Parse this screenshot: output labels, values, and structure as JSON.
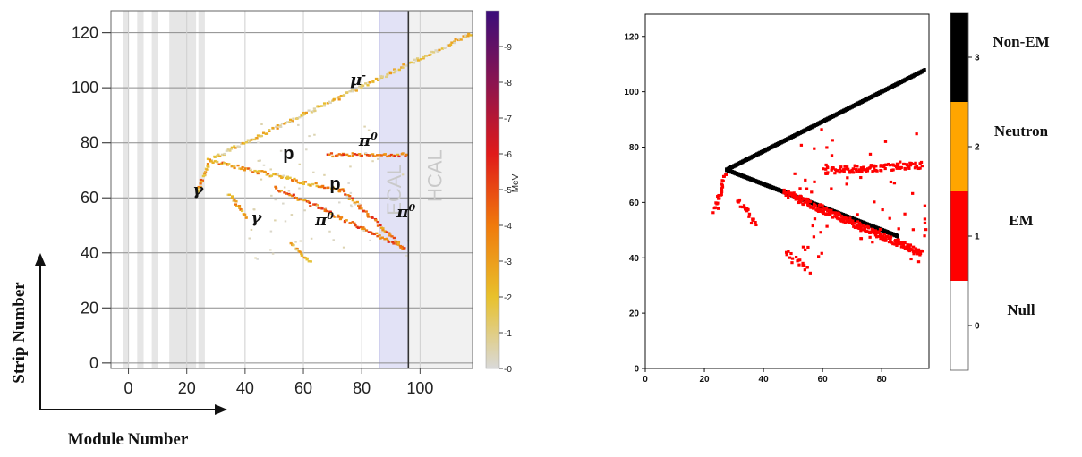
{
  "chart_data": [
    {
      "type": "heatmap",
      "title": "",
      "xlim": [
        -6,
        118
      ],
      "ylim": [
        -2,
        128
      ],
      "x_ticks": [
        "0",
        "20",
        "40",
        "60",
        "80",
        "100"
      ],
      "y_ticks": [
        "0",
        "20",
        "40",
        "60",
        "80",
        "100",
        "120"
      ],
      "xlabel": "Module Number",
      "ylabel": "Strip Number",
      "colorbar": {
        "label": "MeV",
        "range": [
          0,
          10
        ],
        "ticks": [
          "0",
          "1",
          "2",
          "3",
          "4",
          "5",
          "6",
          "7",
          "8",
          "9"
        ],
        "colors": [
          "#d9d9d9",
          "#e8c12c",
          "#f07a0c",
          "#e01a1a",
          "#8a1450",
          "#3a0e7a"
        ]
      },
      "regions": [
        {
          "name": "ECAL",
          "x": [
            86,
            96
          ]
        },
        {
          "name": "HCAL",
          "x": [
            96,
            118
          ]
        }
      ],
      "shaded_modules": [
        -2,
        3,
        8,
        14,
        21,
        24
      ],
      "annotations": [
        {
          "text": "μ",
          "sup": "-",
          "x": 76,
          "y": 101
        },
        {
          "text": "π",
          "sup": "0",
          "x": 79,
          "y": 79
        },
        {
          "text": "p",
          "sup": "",
          "x": 53,
          "y": 74
        },
        {
          "text": "p",
          "sup": "",
          "x": 69,
          "y": 63
        },
        {
          "text": "γ",
          "sup": "",
          "x": 22,
          "y": 61
        },
        {
          "text": "γ",
          "sup": "",
          "x": 42,
          "y": 51
        },
        {
          "text": "π",
          "sup": "0",
          "x": 64,
          "y": 50
        },
        {
          "text": "π",
          "sup": "0",
          "x": 92,
          "y": 53
        }
      ],
      "tracks": [
        {
          "label": "μ-",
          "from": [
            27,
            74
          ],
          "to": [
            117,
            120
          ],
          "energy": 1.5
        },
        {
          "label": "p",
          "from": [
            27,
            74
          ],
          "to": [
            72,
            63
          ],
          "energy": 3
        },
        {
          "label": "π0",
          "from": [
            50,
            64
          ],
          "to": [
            93,
            43
          ],
          "energy": 4
        },
        {
          "label": "π0",
          "from": [
            68,
            76
          ],
          "to": [
            95,
            76
          ],
          "energy": 4
        },
        {
          "label": "γ",
          "from": [
            27,
            73
          ],
          "to": [
            23,
            62
          ],
          "energy": 3
        },
        {
          "label": "γ",
          "from": [
            34,
            62
          ],
          "to": [
            40,
            53
          ],
          "energy": 2.5
        },
        {
          "label": "",
          "from": [
            55,
            44
          ],
          "to": [
            62,
            37
          ],
          "energy": 2
        },
        {
          "label": "",
          "from": [
            72,
            64
          ],
          "to": [
            94,
            42
          ],
          "energy": 4
        }
      ]
    },
    {
      "type": "heatmap",
      "title": "",
      "xlim": [
        0,
        96
      ],
      "ylim": [
        0,
        128
      ],
      "x_ticks": [
        "0",
        "20",
        "40",
        "60",
        "80"
      ],
      "y_ticks": [
        "0",
        "20",
        "40",
        "60",
        "80",
        "100",
        "120"
      ],
      "xlabel": "",
      "ylabel": "",
      "colorbar": {
        "range": [
          -0.5,
          3.5
        ],
        "ticks": [
          "0",
          "1",
          "2",
          "3"
        ],
        "classes": [
          {
            "value": 0,
            "name": "Null",
            "color": "#ffffff"
          },
          {
            "value": 1,
            "name": "EM",
            "color": "#ff0000"
          },
          {
            "value": 2,
            "name": "Neutron",
            "color": "#ffa500"
          },
          {
            "value": 3,
            "name": "Non-EM",
            "color": "#000000"
          }
        ]
      },
      "tracks": [
        {
          "class": 3,
          "from": [
            27,
            72
          ],
          "to": [
            94,
            108
          ],
          "width": 2
        },
        {
          "class": 3,
          "from": [
            27,
            72
          ],
          "to": [
            85,
            48
          ],
          "width": 2
        },
        {
          "class": 1,
          "from": [
            27,
            71
          ],
          "to": [
            23,
            57
          ],
          "width": 1
        },
        {
          "class": 1,
          "from": [
            31,
            62
          ],
          "to": [
            37,
            52
          ],
          "width": 1
        },
        {
          "class": 1,
          "from": [
            47,
            64
          ],
          "to": [
            93,
            42
          ],
          "width": 3
        },
        {
          "class": 1,
          "from": [
            60,
            72
          ],
          "to": [
            93,
            74
          ],
          "width": 2
        },
        {
          "class": 1,
          "from": [
            47,
            42
          ],
          "to": [
            55,
            36
          ],
          "width": 1
        }
      ]
    }
  ]
}
